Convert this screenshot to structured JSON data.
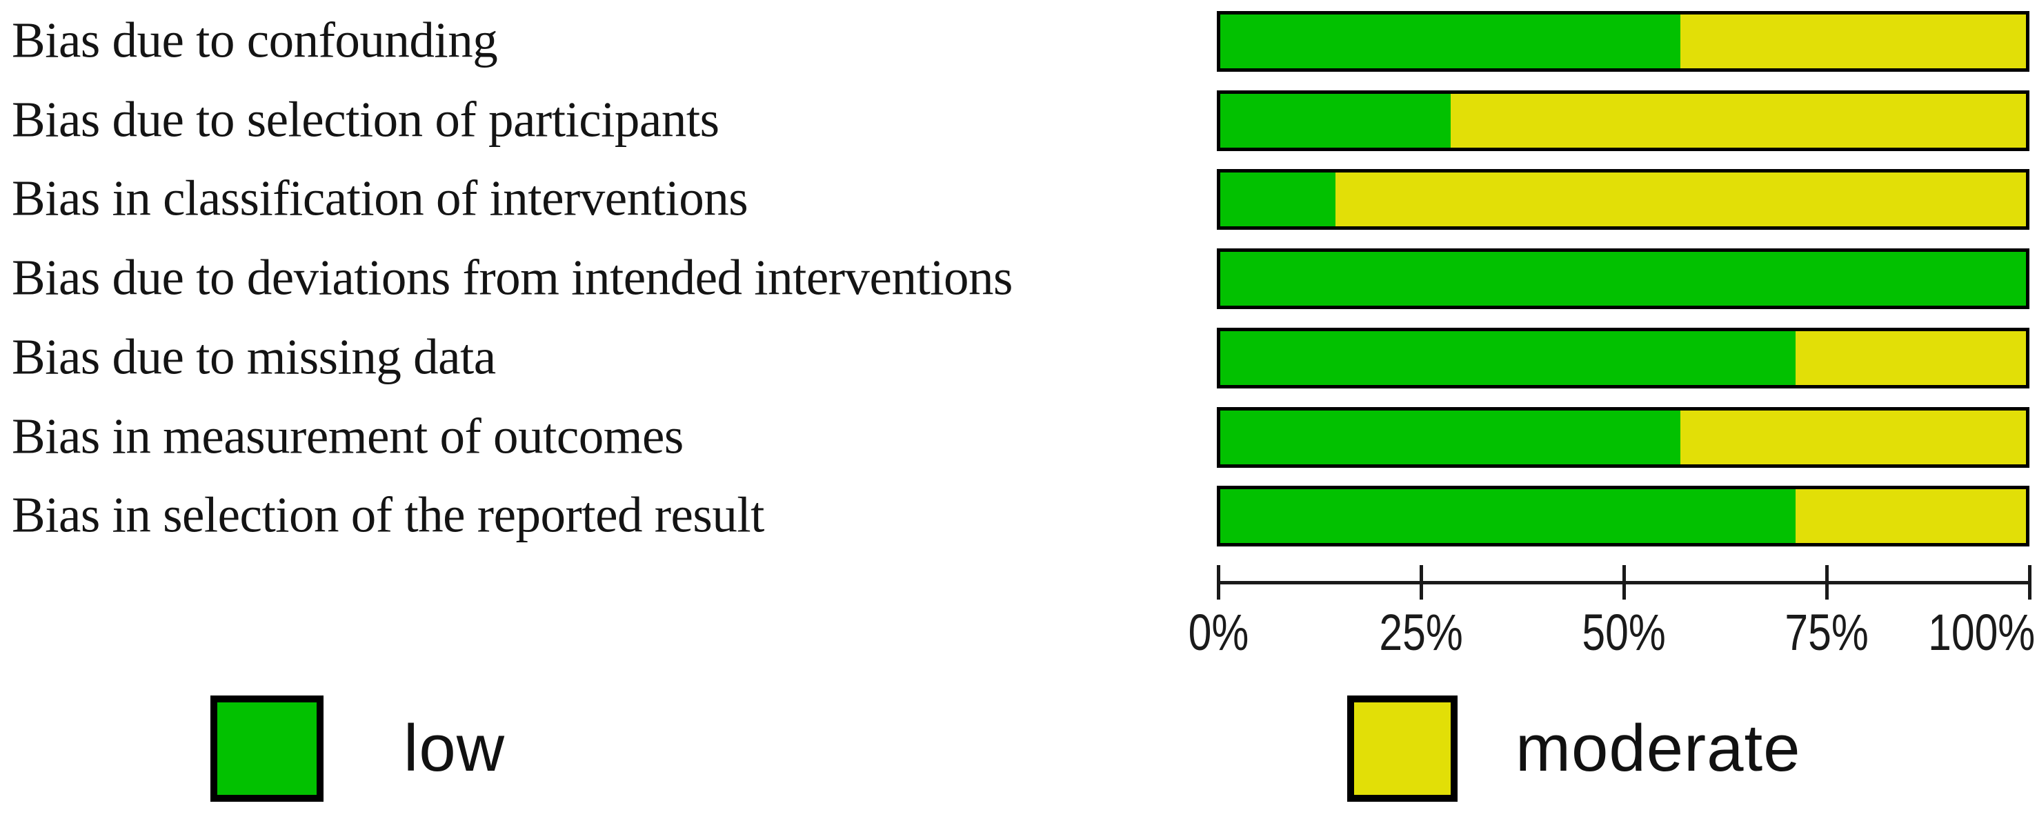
{
  "figure": {
    "background": "#ffffff",
    "text_color": "#141414"
  },
  "chart_data": {
    "type": "bar",
    "stacked": true,
    "orientation": "horizontal",
    "title": "",
    "categories": [
      "Bias due to confounding",
      "Bias due to selection of participants",
      "Bias in classification of interventions",
      "Bias due to deviations from intended interventions",
      "Bias due to missing data",
      "Bias in measurement of outcomes",
      "Bias in selection of the reported result"
    ],
    "series": [
      {
        "name": "low",
        "color": "#02C100",
        "values": [
          57.1,
          28.6,
          14.3,
          100,
          71.4,
          57.1,
          71.4
        ]
      },
      {
        "name": "moderate",
        "color": "#E2DF07",
        "values": [
          42.9,
          71.4,
          85.7,
          0,
          28.6,
          42.9,
          28.6
        ]
      }
    ],
    "x_axis": {
      "min": 0,
      "max": 100,
      "ticks": [
        {
          "label": "0%",
          "value": 0
        },
        {
          "label": "25%",
          "value": 25
        },
        {
          "label": "50%",
          "value": 50
        },
        {
          "label": "75%",
          "value": 75
        },
        {
          "label": "100%",
          "value": 100
        }
      ]
    },
    "legend": [
      {
        "label": "low",
        "color": "#02C100"
      },
      {
        "label": "moderate",
        "color": "#E2DF07"
      }
    ],
    "legend_position": "bottom",
    "grid": false
  }
}
